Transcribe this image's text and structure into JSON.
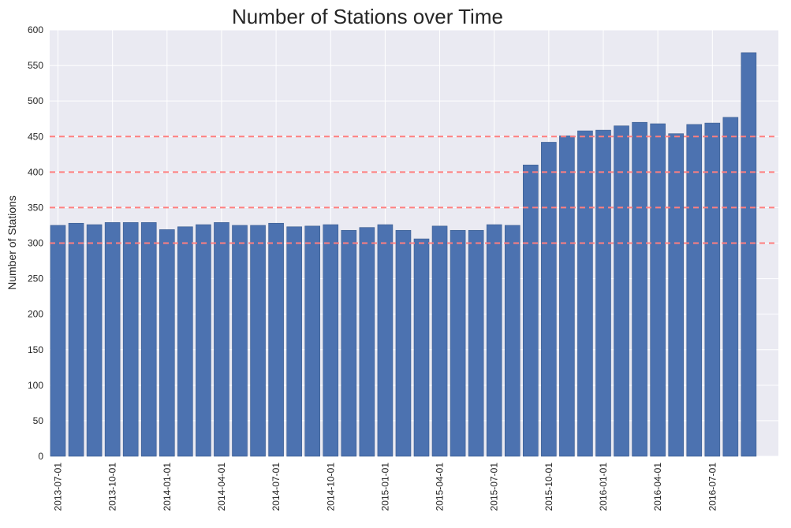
{
  "chart_data": {
    "type": "bar",
    "title": "Number of Stations over Time",
    "xlabel": "",
    "ylabel": "Number of Stations",
    "ylim": [
      0,
      600
    ],
    "yticks": [
      0,
      50,
      100,
      150,
      200,
      250,
      300,
      350,
      400,
      450,
      500,
      550,
      600
    ],
    "xticks": [
      "2013-07-01",
      "2013-10-01",
      "2014-01-01",
      "2014-04-01",
      "2014-07-01",
      "2014-10-01",
      "2015-01-01",
      "2015-04-01",
      "2015-07-01",
      "2015-10-01",
      "2016-01-01",
      "2016-04-01",
      "2016-07-01"
    ],
    "categories": [
      "2013-07",
      "2013-08",
      "2013-09",
      "2013-10",
      "2013-11",
      "2013-12",
      "2014-01",
      "2014-02",
      "2014-03",
      "2014-04",
      "2014-05",
      "2014-06",
      "2014-07",
      "2014-08",
      "2014-09",
      "2014-10",
      "2014-11",
      "2014-12",
      "2015-01",
      "2015-02",
      "2015-03",
      "2015-04",
      "2015-05",
      "2015-06",
      "2015-07",
      "2015-08",
      "2015-09",
      "2015-10",
      "2015-11",
      "2015-12",
      "2016-01",
      "2016-02",
      "2016-03",
      "2016-04",
      "2016-05",
      "2016-06",
      "2016-07",
      "2016-08",
      "2016-09"
    ],
    "values": [
      325,
      328,
      326,
      329,
      329,
      329,
      319,
      323,
      326,
      329,
      325,
      325,
      328,
      323,
      324,
      326,
      318,
      322,
      326,
      318,
      306,
      324,
      318,
      318,
      326,
      325,
      410,
      442,
      451,
      458,
      459,
      465,
      470,
      468,
      454,
      467,
      469,
      477,
      568
    ],
    "reference_lines": [
      300,
      350,
      400,
      450
    ],
    "grid": true,
    "colors": {
      "bar": "#4c72b0",
      "bar_edge": "#3b5d8f",
      "plot_background": "#eaeaf2",
      "grid": "#ffffff",
      "reference_line": "#ff7f7f"
    }
  }
}
